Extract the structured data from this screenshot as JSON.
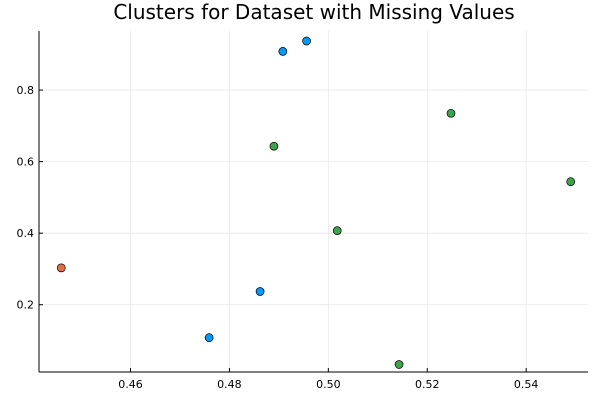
{
  "chart_data": {
    "type": "scatter",
    "title": "Clusters for Dataset with Missing Values",
    "xlabel": "",
    "ylabel": "",
    "xlim": [
      0.4415,
      0.5525
    ],
    "ylim": [
      0.012,
      0.965
    ],
    "x_ticks": [
      0.46,
      0.48,
      0.5,
      0.52,
      0.54
    ],
    "y_ticks": [
      0.2,
      0.4,
      0.6,
      0.8
    ],
    "x_tick_labels": [
      "0.46",
      "0.48",
      "0.50",
      "0.52",
      "0.54"
    ],
    "y_tick_labels": [
      "0.2",
      "0.4",
      "0.6",
      "0.8"
    ],
    "grid": true,
    "legend": "none",
    "series": [
      {
        "color": "#009af9",
        "points": [
          {
            "x": 0.4908,
            "y": 0.908
          },
          {
            "x": 0.4956,
            "y": 0.937
          },
          {
            "x": 0.4862,
            "y": 0.237
          },
          {
            "x": 0.4759,
            "y": 0.108
          }
        ]
      },
      {
        "color": "#e26f46",
        "points": [
          {
            "x": 0.446,
            "y": 0.303
          }
        ]
      },
      {
        "color": "#3da44d",
        "points": [
          {
            "x": 0.489,
            "y": 0.643
          },
          {
            "x": 0.5248,
            "y": 0.735
          },
          {
            "x": 0.549,
            "y": 0.544
          },
          {
            "x": 0.5018,
            "y": 0.407
          },
          {
            "x": 0.5143,
            "y": 0.033
          }
        ]
      }
    ]
  }
}
